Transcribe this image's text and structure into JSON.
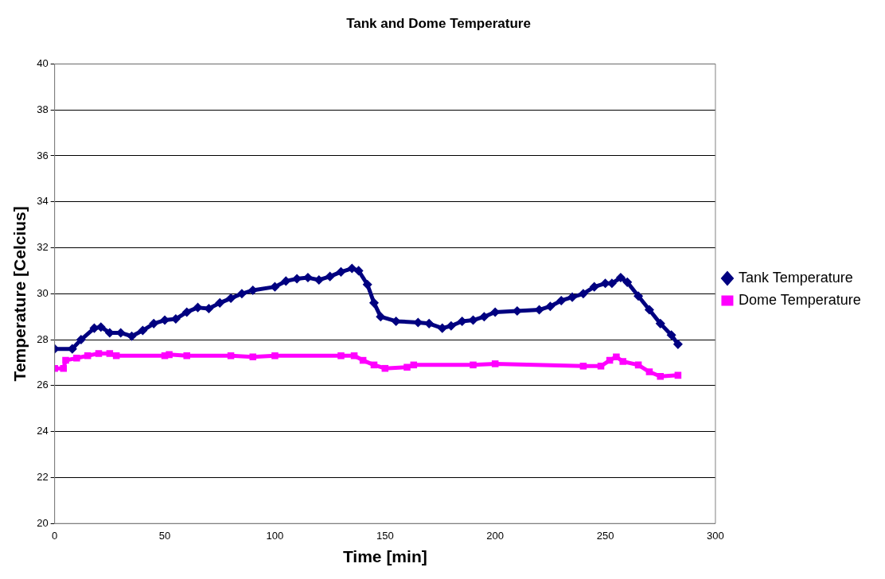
{
  "chart_data": {
    "type": "line",
    "title": "Tank and Dome Temperature",
    "xlabel": "Time [min]",
    "ylabel": "Temperature [Celcius]",
    "xlim": [
      0,
      300
    ],
    "xticks": [
      0,
      50,
      100,
      150,
      200,
      250,
      300
    ],
    "ylim": [
      20,
      40
    ],
    "yticks": [
      20,
      22,
      24,
      26,
      28,
      30,
      32,
      34,
      36,
      38,
      40
    ],
    "grid": "y",
    "legend": "right",
    "line_style": "solid",
    "series": [
      {
        "name": "Tank Temperature",
        "color": "#000080",
        "marker": "diamond",
        "x": [
          0,
          8,
          12,
          18,
          21,
          25,
          30,
          35,
          40,
          45,
          50,
          55,
          60,
          65,
          70,
          75,
          80,
          85,
          90,
          100,
          105,
          110,
          115,
          120,
          125,
          130,
          135,
          138,
          142,
          145,
          148,
          155,
          165,
          170,
          176,
          180,
          185,
          190,
          195,
          200,
          210,
          220,
          225,
          230,
          235,
          240,
          245,
          250,
          253,
          257,
          260,
          265,
          270,
          275,
          280,
          283
        ],
        "values": [
          27.6,
          27.6,
          28.0,
          28.5,
          28.55,
          28.3,
          28.3,
          28.15,
          28.4,
          28.7,
          28.85,
          28.9,
          29.2,
          29.4,
          29.35,
          29.6,
          29.8,
          30.0,
          30.15,
          30.3,
          30.55,
          30.65,
          30.7,
          30.6,
          30.75,
          30.95,
          31.1,
          31.0,
          30.4,
          29.6,
          29.0,
          28.8,
          28.75,
          28.7,
          28.5,
          28.6,
          28.8,
          28.85,
          29.0,
          29.2,
          29.25,
          29.3,
          29.45,
          29.7,
          29.85,
          30.0,
          30.3,
          30.45,
          30.45,
          30.7,
          30.5,
          29.9,
          29.3,
          28.7,
          28.2,
          27.8
        ]
      },
      {
        "name": "Dome Temperature",
        "color": "#ff00ff",
        "marker": "square",
        "x": [
          0,
          4,
          5,
          10,
          15,
          20,
          25,
          28,
          50,
          52,
          60,
          80,
          90,
          100,
          130,
          136,
          140,
          145,
          150,
          160,
          163,
          190,
          200,
          240,
          248,
          252,
          255,
          258,
          265,
          270,
          275,
          283
        ],
        "values": [
          26.75,
          26.75,
          27.1,
          27.2,
          27.3,
          27.4,
          27.4,
          27.3,
          27.3,
          27.35,
          27.3,
          27.3,
          27.25,
          27.3,
          27.3,
          27.3,
          27.1,
          26.9,
          26.75,
          26.8,
          26.9,
          26.9,
          26.95,
          26.85,
          26.85,
          27.1,
          27.25,
          27.05,
          26.9,
          26.6,
          26.4,
          26.45
        ]
      }
    ]
  }
}
